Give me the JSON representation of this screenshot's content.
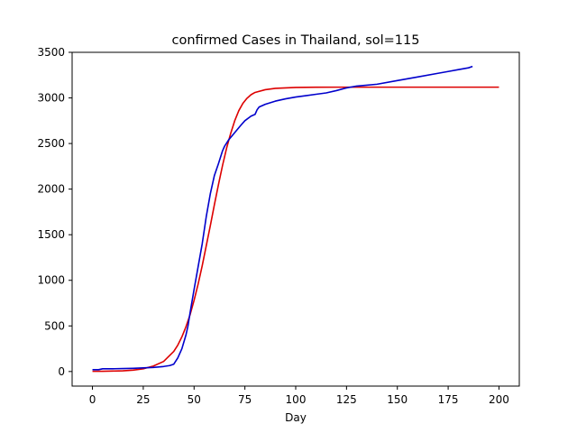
{
  "chart_data": {
    "type": "line",
    "title": "confirmed Cases in Thailand, sol=115",
    "xlabel": "Day",
    "ylabel": "",
    "xlim": [
      -10,
      210
    ],
    "ylim": [
      -160,
      3500
    ],
    "xticks": [
      0,
      25,
      50,
      75,
      100,
      125,
      150,
      175,
      200
    ],
    "yticks": [
      0,
      500,
      1000,
      1500,
      2000,
      2500,
      3000,
      3500
    ],
    "grid": false,
    "series": [
      {
        "color": "#dd0000",
        "x": [
          0,
          5,
          10,
          15,
          20,
          25,
          30,
          35,
          40,
          42,
          44,
          46,
          48,
          50,
          52,
          54,
          56,
          58,
          60,
          62,
          64,
          66,
          68,
          70,
          72,
          74,
          76,
          78,
          80,
          85,
          90,
          95,
          100,
          110,
          120,
          130,
          150,
          175,
          200
        ],
        "y": [
          2,
          3,
          5,
          8,
          15,
          30,
          60,
          110,
          220,
          290,
          380,
          490,
          620,
          780,
          960,
          1160,
          1380,
          1600,
          1830,
          2050,
          2260,
          2450,
          2610,
          2750,
          2860,
          2940,
          2995,
          3035,
          3060,
          3090,
          3105,
          3110,
          3115,
          3117,
          3118,
          3118,
          3118,
          3118,
          3118
        ]
      },
      {
        "color": "#0000cc",
        "x": [
          0,
          3,
          5,
          10,
          15,
          20,
          25,
          30,
          35,
          38,
          40,
          42,
          44,
          46,
          47,
          48,
          50,
          52,
          54,
          56,
          58,
          60,
          62,
          64,
          65,
          67,
          70,
          73,
          75,
          78,
          80,
          81,
          82,
          85,
          90,
          95,
          100,
          105,
          110,
          115,
          120,
          125,
          130,
          140,
          150,
          160,
          170,
          175,
          180,
          185,
          187
        ],
        "y": [
          20,
          20,
          30,
          30,
          32,
          35,
          40,
          45,
          55,
          65,
          80,
          150,
          250,
          400,
          500,
          640,
          900,
          1150,
          1400,
          1700,
          1950,
          2150,
          2280,
          2420,
          2470,
          2540,
          2620,
          2700,
          2750,
          2800,
          2820,
          2870,
          2900,
          2930,
          2965,
          2990,
          3010,
          3025,
          3040,
          3055,
          3080,
          3110,
          3130,
          3150,
          3190,
          3230,
          3270,
          3290,
          3310,
          3330,
          3345
        ]
      }
    ]
  }
}
